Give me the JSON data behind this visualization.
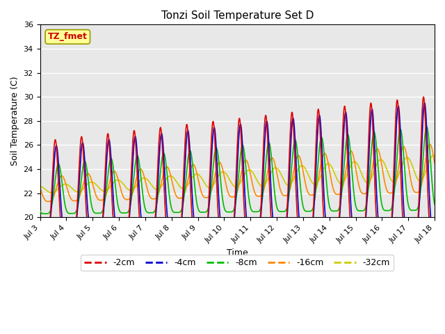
{
  "title": "Tonzi Soil Temperature Set D",
  "xlabel": "Time",
  "ylabel": "Soil Temperature (C)",
  "ylim": [
    20,
    36
  ],
  "xlim_days": [
    3,
    18
  ],
  "annotation": "TZ_fmet",
  "annotation_color": "#cc0000",
  "annotation_bg": "#ffff99",
  "background_color": "#e8e8e8",
  "grid_color": "#ffffff",
  "lines": {
    "-2cm": {
      "color": "#dd0000",
      "lw": 1.2
    },
    "-4cm": {
      "color": "#0000cc",
      "lw": 1.2
    },
    "-8cm": {
      "color": "#00bb00",
      "lw": 1.2
    },
    "-16cm": {
      "color": "#ff8800",
      "lw": 1.2
    },
    "-32cm": {
      "color": "#cccc00",
      "lw": 1.2
    }
  },
  "xtick_labels": [
    "Jul 3",
    "Jul 4",
    "Jul 5",
    "Jul 6",
    "Jul 7",
    "Jul 8",
    "Jul 9",
    "Jul 10",
    "Jul 11",
    "Jul 12",
    "Jul 13",
    "Jul 14",
    "Jul 15",
    "Jul 16",
    "Jul 17",
    "Jul 18"
  ],
  "xtick_positions": [
    3,
    4,
    5,
    6,
    7,
    8,
    9,
    10,
    11,
    12,
    13,
    14,
    15,
    16,
    17,
    18
  ]
}
